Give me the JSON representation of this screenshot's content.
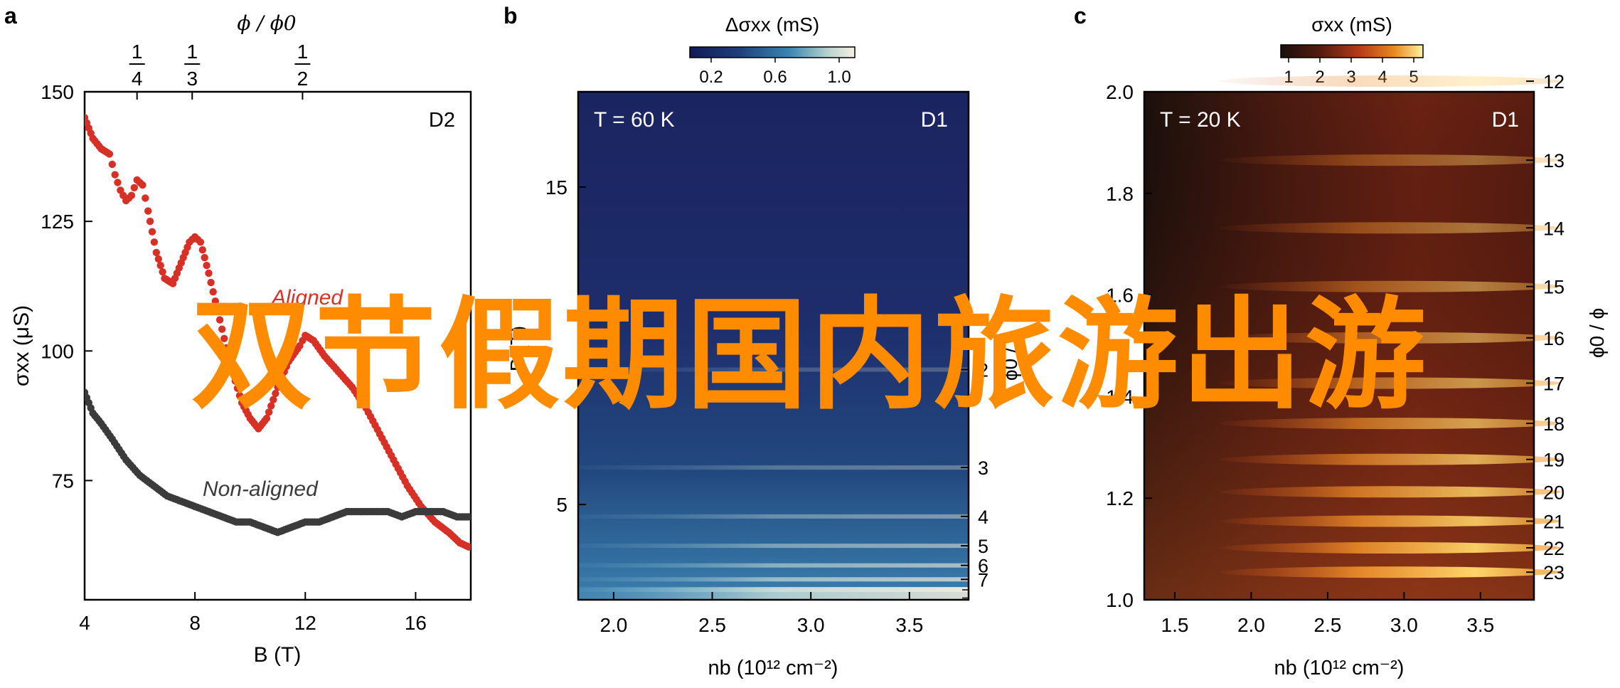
{
  "chart_data": [
    {
      "panel": "a",
      "type": "scatter",
      "xlabel": "B (T)",
      "ylabel": "σxx (μS)",
      "x_ticks": [
        4,
        8,
        12,
        16
      ],
      "y_ticks": [
        75,
        100,
        125,
        150
      ],
      "xlim": [
        4,
        18
      ],
      "ylim": [
        52,
        150
      ],
      "top_axis_label": "ϕ / ϕ0",
      "top_ticks": [
        {
          "label": "1/4",
          "x": 5.9
        },
        {
          "label": "1/3",
          "x": 7.9
        },
        {
          "label": "1/2",
          "x": 11.9
        }
      ],
      "annotation": "D2",
      "series": [
        {
          "name": "Aligned",
          "color": "#d73027",
          "points": [
            [
              4.0,
              145
            ],
            [
              4.3,
              141
            ],
            [
              4.6,
              139
            ],
            [
              4.9,
              138
            ],
            [
              5.1,
              134
            ],
            [
              5.3,
              131
            ],
            [
              5.5,
              129
            ],
            [
              5.7,
              130
            ],
            [
              5.9,
              133
            ],
            [
              6.1,
              132
            ],
            [
              6.3,
              127
            ],
            [
              6.6,
              119
            ],
            [
              6.9,
              114
            ],
            [
              7.2,
              113
            ],
            [
              7.5,
              117
            ],
            [
              7.8,
              121
            ],
            [
              8.0,
              122
            ],
            [
              8.2,
              121
            ],
            [
              8.5,
              115
            ],
            [
              8.9,
              106
            ],
            [
              9.3,
              97
            ],
            [
              9.7,
              90
            ],
            [
              10.0,
              87
            ],
            [
              10.3,
              85
            ],
            [
              10.6,
              87
            ],
            [
              11.0,
              93
            ],
            [
              11.4,
              98
            ],
            [
              11.8,
              101
            ],
            [
              12.0,
              103
            ],
            [
              12.3,
              102
            ],
            [
              12.7,
              99
            ],
            [
              13.2,
              96
            ],
            [
              13.7,
              93
            ],
            [
              14.2,
              89
            ],
            [
              14.7,
              84
            ],
            [
              15.2,
              79
            ],
            [
              15.7,
              74
            ],
            [
              16.2,
              70
            ],
            [
              16.7,
              67
            ],
            [
              17.2,
              65
            ],
            [
              17.6,
              63
            ],
            [
              18.0,
              62
            ]
          ]
        },
        {
          "name": "Non-aligned",
          "color": "#3b3b3b",
          "points": [
            [
              4.0,
              92
            ],
            [
              4.3,
              88
            ],
            [
              4.6,
              86
            ],
            [
              5.0,
              83
            ],
            [
              5.5,
              79
            ],
            [
              6.0,
              76
            ],
            [
              6.5,
              74
            ],
            [
              7.0,
              72
            ],
            [
              7.5,
              71
            ],
            [
              8.0,
              70
            ],
            [
              8.5,
              69
            ],
            [
              9.0,
              68
            ],
            [
              9.5,
              67
            ],
            [
              10.0,
              67
            ],
            [
              10.5,
              66
            ],
            [
              11.0,
              65
            ],
            [
              11.5,
              66
            ],
            [
              12.0,
              67
            ],
            [
              12.5,
              67
            ],
            [
              13.0,
              68
            ],
            [
              13.5,
              69
            ],
            [
              14.0,
              69
            ],
            [
              14.5,
              69
            ],
            [
              15.0,
              69
            ],
            [
              15.5,
              68
            ],
            [
              16.0,
              69
            ],
            [
              16.5,
              69
            ],
            [
              17.0,
              69
            ],
            [
              17.5,
              68
            ],
            [
              18.0,
              68
            ]
          ]
        }
      ],
      "legend_labels": [
        "Aligned",
        "Non-aligned"
      ]
    },
    {
      "panel": "b",
      "type": "heatmap",
      "xlabel": "nb (10¹² cm⁻²)",
      "ylabel": "B (T)",
      "x_ticks": [
        2.0,
        2.5,
        3.0,
        3.5
      ],
      "y_ticks": [
        5,
        15
      ],
      "xlim": [
        1.82,
        3.8
      ],
      "ylim": [
        2,
        18
      ],
      "right_axis_label": "ϕ0 / ϕ",
      "right_ticks": [
        2,
        3,
        4,
        5,
        6,
        7
      ],
      "colorbar": {
        "label": "Δσxx (mS)",
        "ticks": [
          "0.2",
          "0.6",
          "1.0"
        ],
        "stops": [
          "#121a55",
          "#1f3f7a",
          "#3a84b0",
          "#bcd6d0",
          "#f6efe2"
        ]
      },
      "annotation_left": "T = 60 K",
      "annotation_right": "D1"
    },
    {
      "panel": "c",
      "type": "heatmap",
      "xlabel": "nb (10¹² cm⁻²)",
      "ylabel": "",
      "x_ticks": [
        1.5,
        2.0,
        2.5,
        3.0,
        3.5
      ],
      "y_ticks": [
        "1.0",
        "1.2",
        "1.4",
        "1.6",
        "1.8",
        "2.0"
      ],
      "xlim": [
        1.3,
        3.85
      ],
      "ylim": [
        1.0,
        2.0
      ],
      "right_axis_label": "ϕ0 / ϕ",
      "right_ticks": [
        12,
        13,
        14,
        15,
        16,
        17,
        18,
        19,
        20,
        21,
        22,
        23
      ],
      "colorbar": {
        "label": "σxx (mS)",
        "ticks": [
          "1",
          "2",
          "3",
          "4",
          "5"
        ],
        "stops": [
          "#1b0f0c",
          "#5a1d10",
          "#b53a17",
          "#e9891f",
          "#fff3a0"
        ]
      },
      "annotation_left": "T = 20 K",
      "annotation_right": "D1"
    }
  ],
  "panel_labels": [
    "a",
    "b",
    "c"
  ],
  "overlay_text": "双节假期国内旅游出游"
}
